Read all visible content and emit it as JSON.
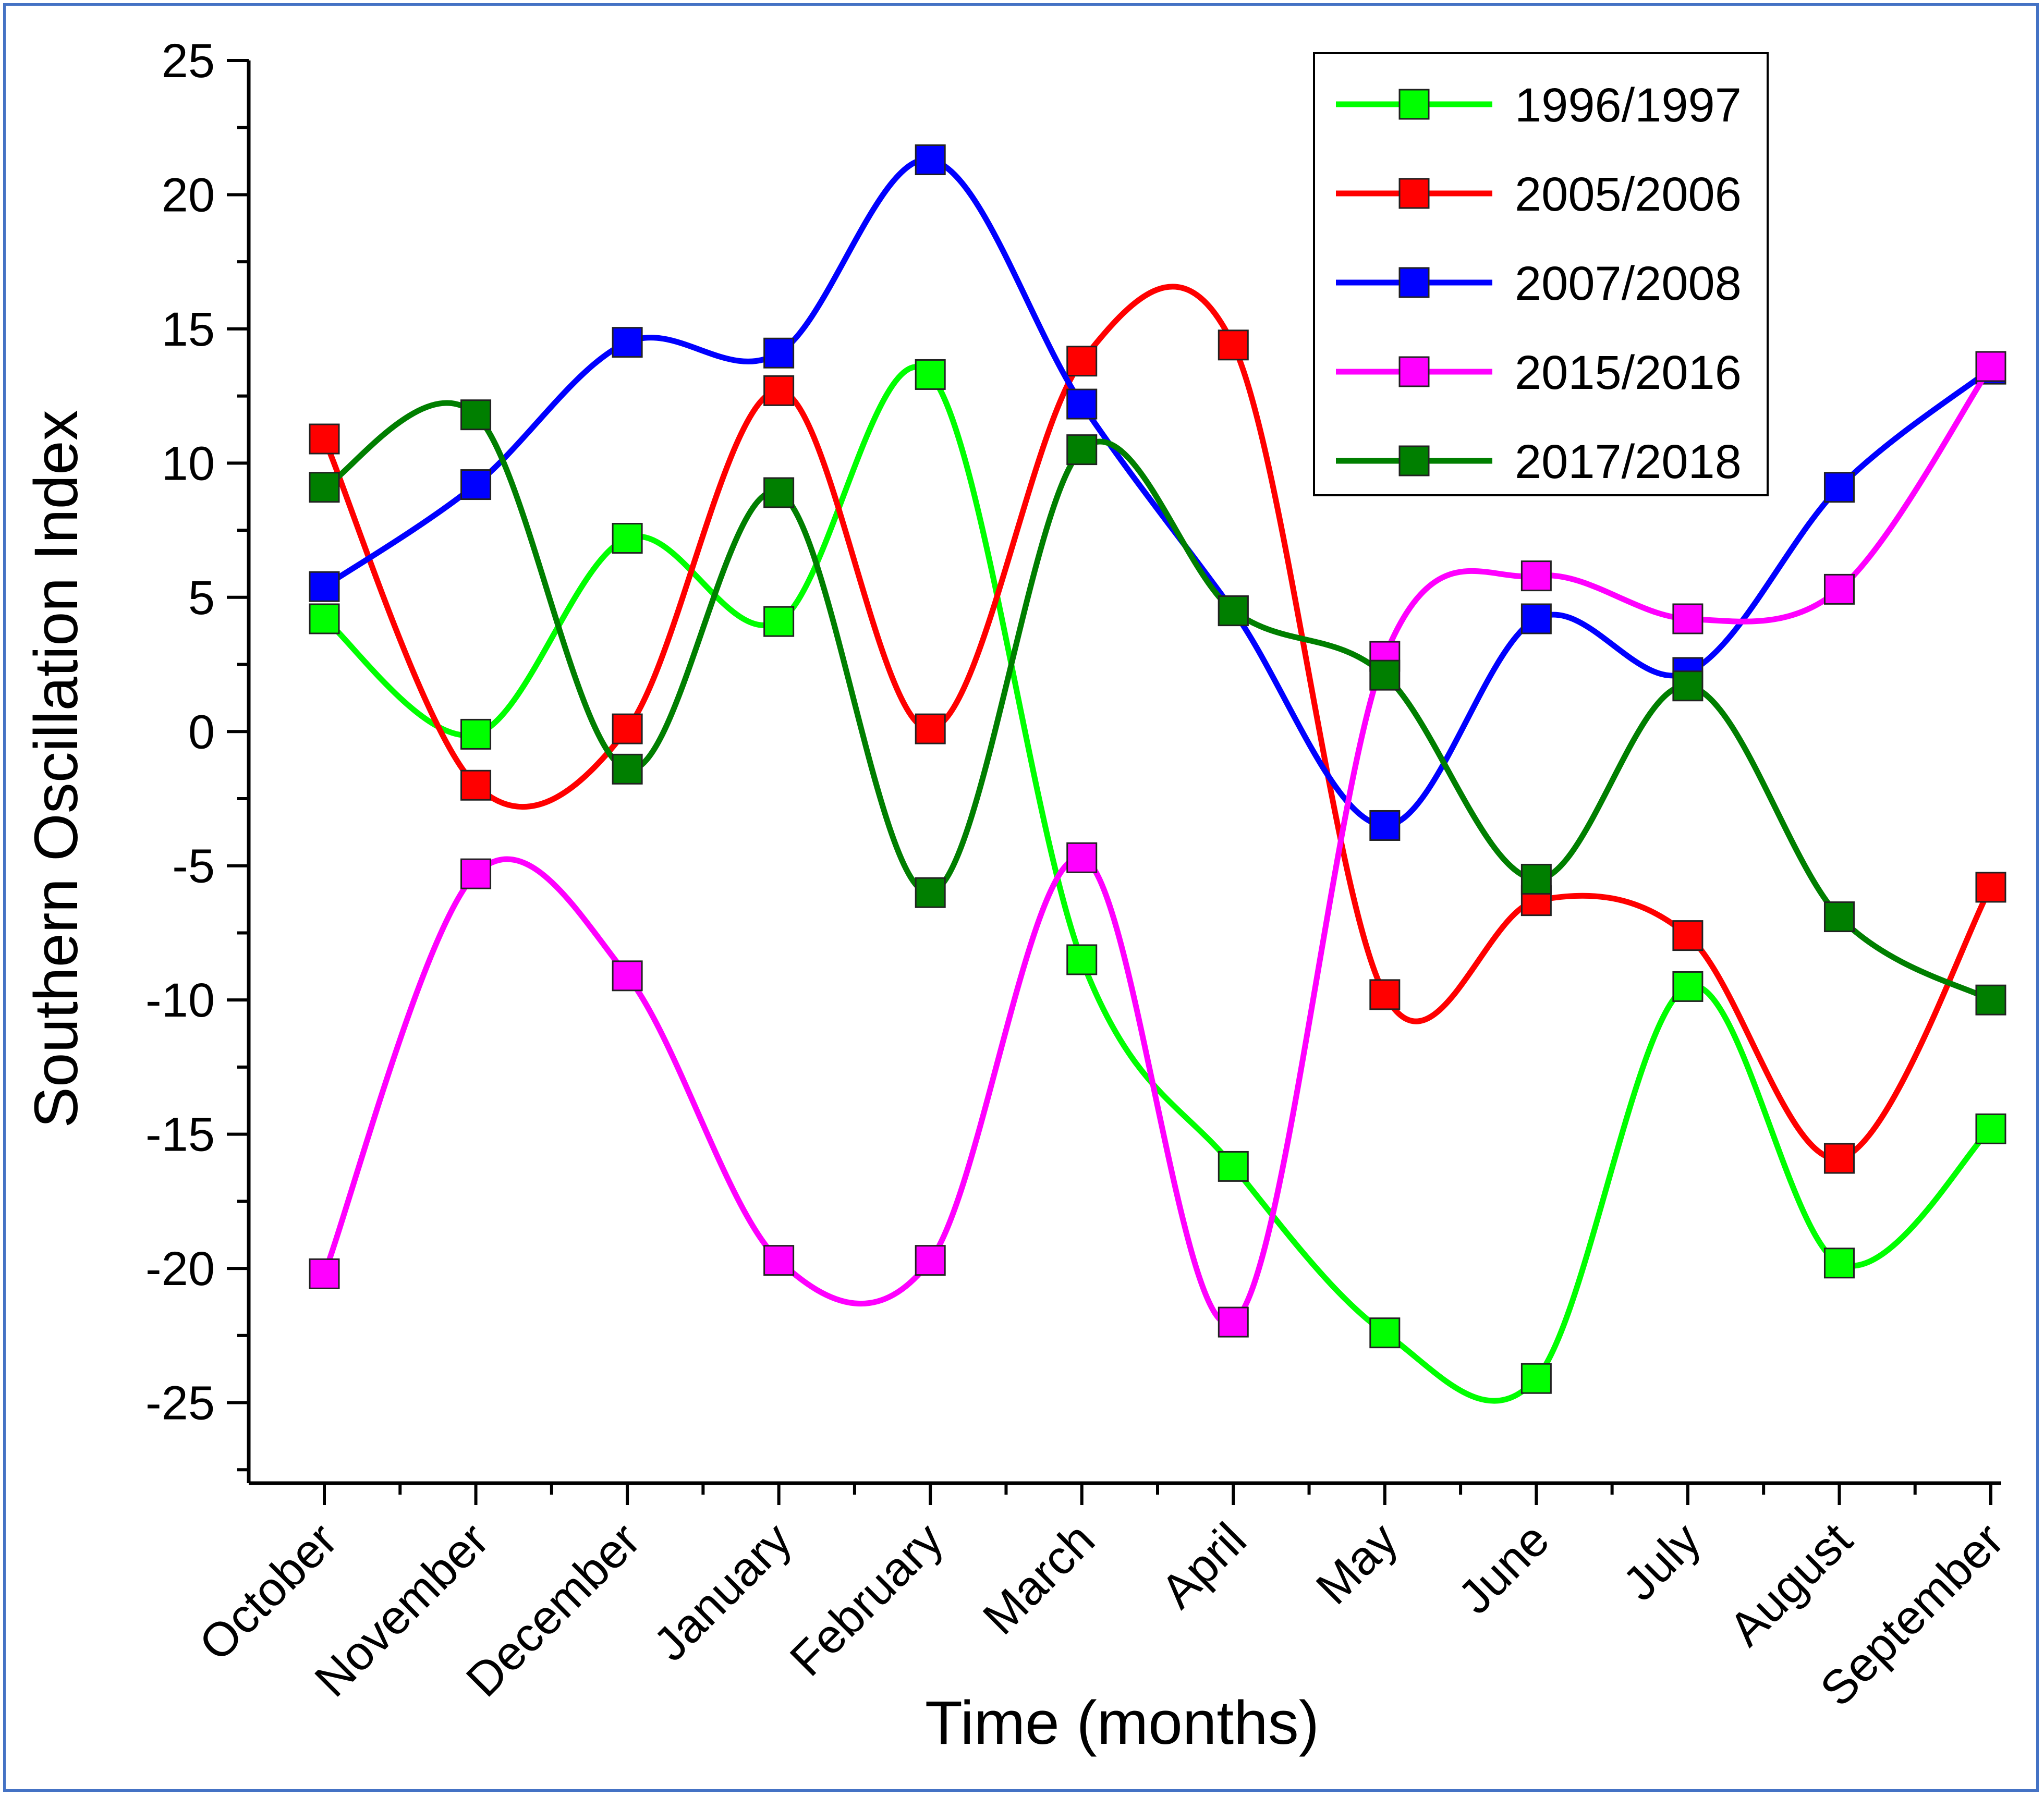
{
  "chart_data": {
    "type": "line",
    "smooth": true,
    "xlabel": "Time (months)",
    "ylabel": "Southern Oscillation Index",
    "categories": [
      "October",
      "November",
      "December",
      "January",
      "February",
      "March",
      "April",
      "May",
      "June",
      "July",
      "August",
      "September"
    ],
    "ylim": [
      -28,
      25
    ],
    "yticks": [
      -25,
      -20,
      -15,
      -10,
      -5,
      0,
      5,
      10,
      15,
      20,
      25
    ],
    "yticks_labels": [
      "-25",
      "-20",
      "-15",
      "-10",
      "-5",
      "0",
      "5",
      "10",
      "15",
      "20",
      "25"
    ],
    "grid": false,
    "legend_position": "top-right",
    "marker": "square",
    "series": [
      {
        "name": "1996/1997",
        "color": "#00ff00",
        "values": [
          4.2,
          -0.1,
          7.2,
          4.1,
          13.3,
          -8.5,
          -16.2,
          -22.4,
          -24.1,
          -9.5,
          -19.8,
          -14.8
        ]
      },
      {
        "name": "2005/2006",
        "color": "#ff0000",
        "values": [
          10.9,
          -2.0,
          0.1,
          12.7,
          0.1,
          13.8,
          14.4,
          -9.8,
          -6.3,
          -7.6,
          -15.9,
          -5.8
        ]
      },
      {
        "name": "2007/2008",
        "color": "#0000ff",
        "values": [
          5.4,
          9.2,
          14.5,
          14.1,
          21.3,
          12.2,
          4.5,
          -3.5,
          4.2,
          2.2,
          9.1,
          13.5
        ]
      },
      {
        "name": "2015/2016",
        "color": "#ff00ff",
        "values": [
          -20.2,
          -5.3,
          -9.1,
          -19.7,
          -19.7,
          -4.7,
          -22.0,
          2.8,
          5.8,
          4.2,
          5.3,
          13.6
        ]
      },
      {
        "name": "2017/2018",
        "color": "#007f00",
        "values": [
          9.1,
          11.8,
          -1.4,
          8.9,
          -6.0,
          10.5,
          4.5,
          2.1,
          -5.5,
          1.7,
          -6.9,
          -10.0
        ]
      }
    ]
  }
}
